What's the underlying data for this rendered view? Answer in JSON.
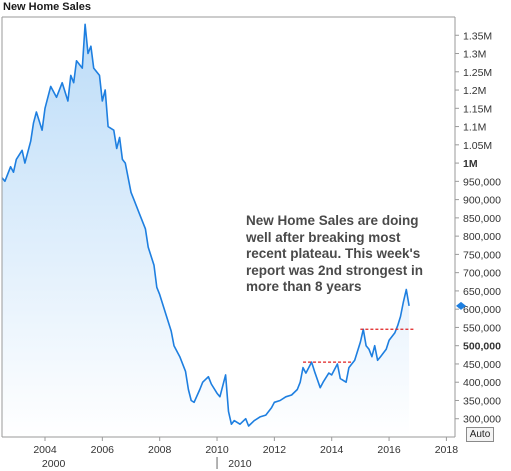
{
  "window_title": "New Home Sales",
  "annotation_lines": [
    "New Home Sales are doing",
    "well after breaking most",
    "recent plateau.  This week's",
    "report was 2nd strongest in",
    "more than 8 years"
  ],
  "auto_button_label": "Auto",
  "colors": {
    "line": "#1e7fe0",
    "area_top": "#bcdcf8",
    "area_bottom": "#ffffff",
    "plateau": "#e02020",
    "grid": "#dcdcdc"
  },
  "chart_data": {
    "type": "area",
    "title": "New Home Sales",
    "x_tick_labels": [
      "2004",
      "2006",
      "2008",
      "2010",
      "2012",
      "2014",
      "2016",
      "2018"
    ],
    "x_major_labels": [
      "2000",
      "2010"
    ],
    "y_tick_labels": [
      {
        "value": 1350000,
        "label": "1.35M",
        "bold": false
      },
      {
        "value": 1300000,
        "label": "1.3M",
        "bold": false
      },
      {
        "value": 1250000,
        "label": "1.25M",
        "bold": false
      },
      {
        "value": 1200000,
        "label": "1.2M",
        "bold": false
      },
      {
        "value": 1150000,
        "label": "1.15M",
        "bold": false
      },
      {
        "value": 1100000,
        "label": "1.1M",
        "bold": false
      },
      {
        "value": 1050000,
        "label": "1.05M",
        "bold": false
      },
      {
        "value": 1000000,
        "label": "1M",
        "bold": true
      },
      {
        "value": 950000,
        "label": "950,000",
        "bold": false
      },
      {
        "value": 900000,
        "label": "900,000",
        "bold": false
      },
      {
        "value": 850000,
        "label": "850,000",
        "bold": false
      },
      {
        "value": 800000,
        "label": "800,000",
        "bold": false
      },
      {
        "value": 750000,
        "label": "750,000",
        "bold": false
      },
      {
        "value": 700000,
        "label": "700,000",
        "bold": false
      },
      {
        "value": 650000,
        "label": "650,000",
        "bold": false
      },
      {
        "value": 600000,
        "label": "600,000",
        "bold": false
      },
      {
        "value": 550000,
        "label": "550,000",
        "bold": false
      },
      {
        "value": 500000,
        "label": "500,000",
        "bold": true
      },
      {
        "value": 450000,
        "label": "450,000",
        "bold": false
      },
      {
        "value": 400000,
        "label": "400,000",
        "bold": false
      },
      {
        "value": 350000,
        "label": "350,000",
        "bold": false
      },
      {
        "value": 300000,
        "label": "300,000",
        "bold": false
      }
    ],
    "xlim": [
      2002.5,
      2018.3
    ],
    "ylim": [
      250000,
      1400000
    ],
    "last_value": 609000,
    "series": [
      {
        "points": [
          [
            2002.5,
            960000
          ],
          [
            2002.6,
            950000
          ],
          [
            2002.8,
            990000
          ],
          [
            2002.9,
            975000
          ],
          [
            2003.0,
            1010000
          ],
          [
            2003.2,
            1035000
          ],
          [
            2003.3,
            1000000
          ],
          [
            2003.5,
            1060000
          ],
          [
            2003.6,
            1110000
          ],
          [
            2003.7,
            1140000
          ],
          [
            2003.9,
            1090000
          ],
          [
            2004.0,
            1150000
          ],
          [
            2004.2,
            1210000
          ],
          [
            2004.4,
            1180000
          ],
          [
            2004.6,
            1220000
          ],
          [
            2004.8,
            1170000
          ],
          [
            2004.9,
            1240000
          ],
          [
            2005.0,
            1220000
          ],
          [
            2005.1,
            1280000
          ],
          [
            2005.3,
            1260000
          ],
          [
            2005.4,
            1380000
          ],
          [
            2005.5,
            1300000
          ],
          [
            2005.6,
            1320000
          ],
          [
            2005.7,
            1260000
          ],
          [
            2005.8,
            1250000
          ],
          [
            2005.9,
            1240000
          ],
          [
            2006.0,
            1170000
          ],
          [
            2006.1,
            1200000
          ],
          [
            2006.2,
            1100000
          ],
          [
            2006.4,
            1090000
          ],
          [
            2006.5,
            1040000
          ],
          [
            2006.6,
            1070000
          ],
          [
            2006.7,
            1010000
          ],
          [
            2006.8,
            1000000
          ],
          [
            2007.0,
            920000
          ],
          [
            2007.1,
            900000
          ],
          [
            2007.3,
            860000
          ],
          [
            2007.5,
            820000
          ],
          [
            2007.6,
            770000
          ],
          [
            2007.8,
            720000
          ],
          [
            2007.9,
            660000
          ],
          [
            2008.0,
            640000
          ],
          [
            2008.2,
            590000
          ],
          [
            2008.4,
            540000
          ],
          [
            2008.5,
            500000
          ],
          [
            2008.7,
            470000
          ],
          [
            2008.9,
            430000
          ],
          [
            2009.0,
            380000
          ],
          [
            2009.1,
            350000
          ],
          [
            2009.2,
            345000
          ],
          [
            2009.4,
            380000
          ],
          [
            2009.5,
            400000
          ],
          [
            2009.7,
            415000
          ],
          [
            2009.8,
            395000
          ],
          [
            2010.0,
            370000
          ],
          [
            2010.1,
            360000
          ],
          [
            2010.3,
            420000
          ],
          [
            2010.4,
            320000
          ],
          [
            2010.5,
            285000
          ],
          [
            2010.6,
            295000
          ],
          [
            2010.8,
            285000
          ],
          [
            2011.0,
            300000
          ],
          [
            2011.1,
            280000
          ],
          [
            2011.3,
            295000
          ],
          [
            2011.5,
            305000
          ],
          [
            2011.7,
            310000
          ],
          [
            2011.9,
            330000
          ],
          [
            2012.0,
            345000
          ],
          [
            2012.2,
            350000
          ],
          [
            2012.4,
            360000
          ],
          [
            2012.6,
            365000
          ],
          [
            2012.8,
            380000
          ],
          [
            2012.9,
            400000
          ],
          [
            2013.0,
            440000
          ],
          [
            2013.1,
            425000
          ],
          [
            2013.3,
            455000
          ],
          [
            2013.4,
            430000
          ],
          [
            2013.6,
            385000
          ],
          [
            2013.7,
            400000
          ],
          [
            2013.9,
            425000
          ],
          [
            2014.0,
            420000
          ],
          [
            2014.2,
            450000
          ],
          [
            2014.3,
            410000
          ],
          [
            2014.5,
            400000
          ],
          [
            2014.6,
            440000
          ],
          [
            2014.8,
            460000
          ],
          [
            2015.0,
            510000
          ],
          [
            2015.1,
            545000
          ],
          [
            2015.2,
            500000
          ],
          [
            2015.3,
            490000
          ],
          [
            2015.4,
            470000
          ],
          [
            2015.5,
            500000
          ],
          [
            2015.6,
            460000
          ],
          [
            2015.7,
            470000
          ],
          [
            2015.9,
            490000
          ],
          [
            2016.0,
            515000
          ],
          [
            2016.2,
            535000
          ],
          [
            2016.3,
            555000
          ],
          [
            2016.4,
            580000
          ],
          [
            2016.5,
            620000
          ],
          [
            2016.6,
            654000
          ],
          [
            2016.7,
            609000
          ]
        ]
      }
    ],
    "annotations": [
      {
        "type": "plateau",
        "x_start": 2013.0,
        "x_end": 2014.7,
        "y": 455000
      },
      {
        "type": "plateau",
        "x_start": 2015.0,
        "x_end": 2016.85,
        "y": 545000
      }
    ]
  }
}
